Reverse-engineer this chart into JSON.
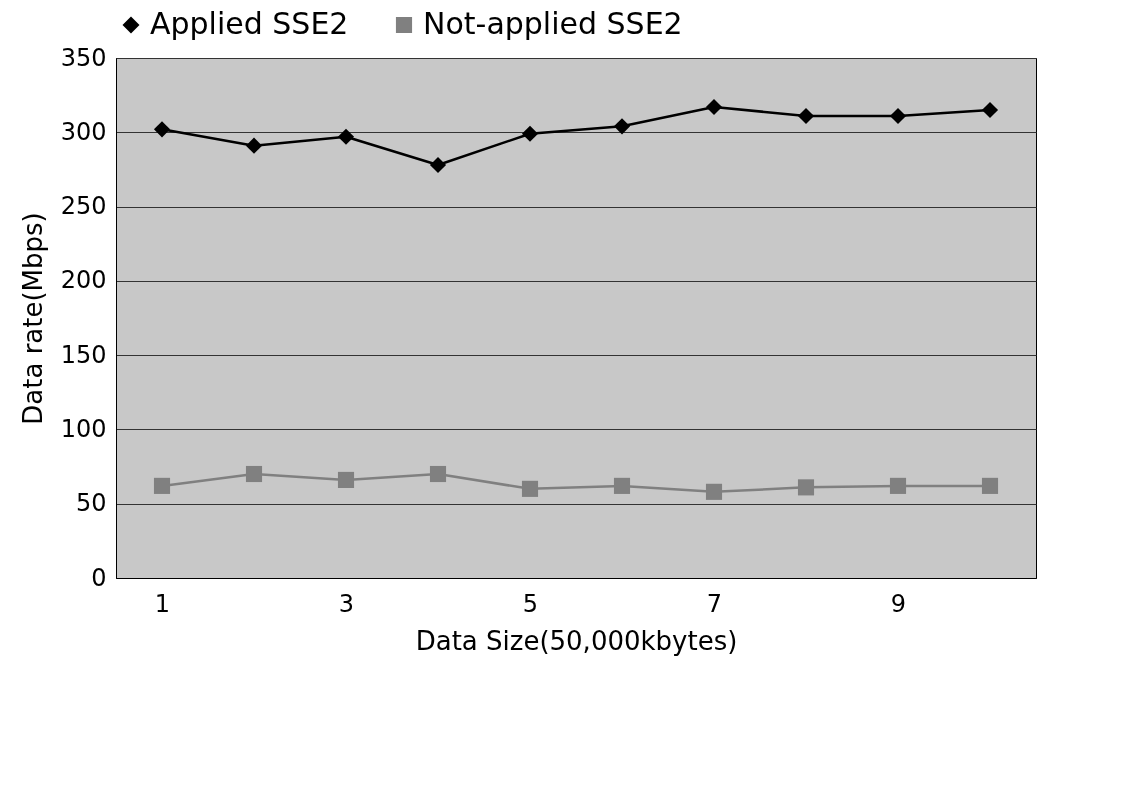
{
  "chart_data": {
    "type": "line",
    "xlabel": "Data Size(50,000kbytes)",
    "ylabel": "Data rate(Mbps)",
    "categories": [
      "1",
      null,
      "3",
      null,
      "5",
      null,
      "7",
      null,
      "9",
      null
    ],
    "series": [
      {
        "name": "Applied SSE2",
        "color": "#000000",
        "marker": "diamond",
        "values": [
          302,
          291,
          297,
          278,
          299,
          304,
          317,
          311,
          311,
          315
        ]
      },
      {
        "name": "Not-applied SSE2",
        "color": "#808080",
        "marker": "square",
        "values": [
          62,
          70,
          66,
          70,
          60,
          62,
          58,
          61,
          62,
          62
        ]
      }
    ],
    "ylim": [
      0,
      350
    ],
    "yticks": [
      0,
      50,
      100,
      150,
      200,
      250,
      300,
      350
    ],
    "grid": "y",
    "legend": "top",
    "line_style": "solid"
  }
}
